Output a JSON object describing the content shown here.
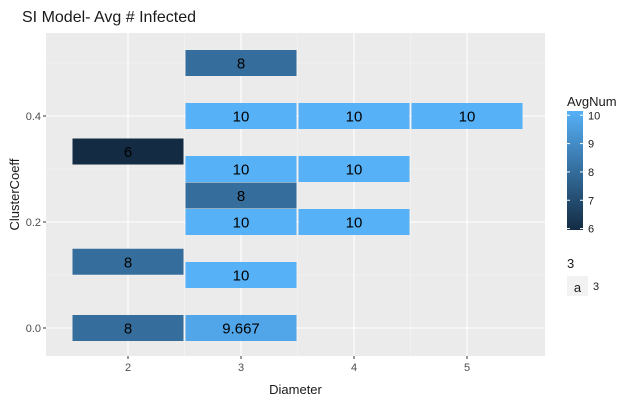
{
  "chart_data": {
    "type": "heatmap",
    "title": "SI Model- Avg # Infected",
    "xlabel": "Diameter",
    "ylabel": "ClusterCoeff",
    "x_ticks": [
      "2",
      "3",
      "4",
      "5"
    ],
    "y_ticks": [
      "0.0",
      "0.2",
      "0.4"
    ],
    "xlim": [
      1.5,
      5.75
    ],
    "ylim": [
      -0.05,
      0.53
    ],
    "grid": true,
    "legend_position": "right",
    "fill_legend": {
      "title": "AvgNum",
      "ticks": [
        "10",
        "9",
        "8",
        "7",
        "6"
      ],
      "range": [
        6,
        10
      ],
      "low_color": "#132b43",
      "high_color": "#56b1f7"
    },
    "size_legend": {
      "title": "3",
      "key_glyph": "a",
      "label": "3"
    },
    "tiles": [
      {
        "diameter": 3,
        "cluster_coeff": 0.5,
        "value": 8,
        "label": "8"
      },
      {
        "diameter": 3,
        "cluster_coeff": 0.4,
        "value": 10,
        "label": "10"
      },
      {
        "diameter": 4,
        "cluster_coeff": 0.4,
        "value": 10,
        "label": "10"
      },
      {
        "diameter": 5,
        "cluster_coeff": 0.4,
        "value": 10,
        "label": "10"
      },
      {
        "diameter": 2,
        "cluster_coeff": 0.333,
        "value": 6,
        "label": "6"
      },
      {
        "diameter": 3,
        "cluster_coeff": 0.3,
        "value": 10,
        "label": "10"
      },
      {
        "diameter": 4,
        "cluster_coeff": 0.3,
        "value": 10,
        "label": "10"
      },
      {
        "diameter": 3,
        "cluster_coeff": 0.25,
        "value": 8,
        "label": "8"
      },
      {
        "diameter": 3,
        "cluster_coeff": 0.2,
        "value": 10,
        "label": "10"
      },
      {
        "diameter": 4,
        "cluster_coeff": 0.2,
        "value": 10,
        "label": "10"
      },
      {
        "diameter": 2,
        "cluster_coeff": 0.125,
        "value": 8,
        "label": "8"
      },
      {
        "diameter": 3,
        "cluster_coeff": 0.1,
        "value": 10,
        "label": "10"
      },
      {
        "diameter": 2,
        "cluster_coeff": 0.0,
        "value": 8,
        "label": "8"
      },
      {
        "diameter": 3,
        "cluster_coeff": 0.0,
        "value": 9.667,
        "label": "9.667"
      }
    ]
  }
}
